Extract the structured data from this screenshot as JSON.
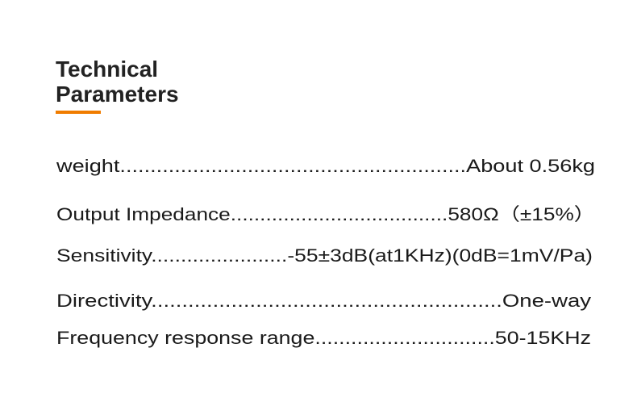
{
  "title": {
    "line1": "Technical",
    "line2": "Parameters"
  },
  "accent_color": "#f07c00",
  "rows": [
    "weight.........................................................About 0.56kg",
    "Output Impedance.....................................580Ω（±15%）",
    "Sensitivity.......................-55±3dB(at1KHz)(0dB=1mV/Pa)",
    "Directivity.........................................................One-way",
    "Frequency response range..............................50-15KHz"
  ]
}
